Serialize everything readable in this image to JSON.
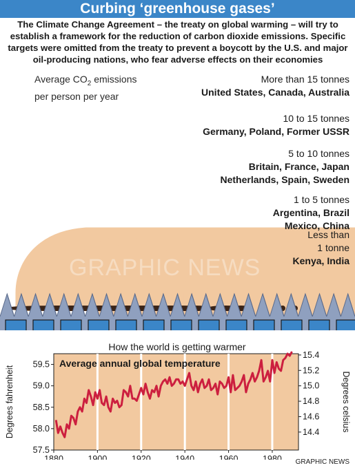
{
  "title": "Curbing ‘greenhouse gases’",
  "intro": "The Climate Change Agreement – the treaty on global warming – will try to establish a framework for the reduction of carbon dioxide emissions. Specific targets were omitted from the treaty to prevent a boycott by the U.S. and major oil-producing nations, who fear adverse effects on their economies",
  "emissions_label": {
    "line1_prefix": "Average CO",
    "line1_sub": "2",
    "line1_suffix": "emissions",
    "line2": "per person per year"
  },
  "groups": [
    {
      "title": "More than 15 tonnes",
      "countries": [
        "United States, Canada, Australia"
      ]
    },
    {
      "title": "10 to 15 tonnes",
      "countries": [
        "Germany, Poland, Former USSR"
      ]
    },
    {
      "title": "5 to 10 tonnes",
      "countries": [
        "Britain, France, Japan",
        "Netherlands, Spain, Sweden"
      ]
    },
    {
      "title": "1 to 5 tonnes",
      "countries": [
        "Argentina, Brazil",
        "Mexico, China"
      ]
    },
    {
      "title_lines": [
        "Less than",
        "1 tonne"
      ],
      "countries": [
        "Kenya, India"
      ]
    }
  ],
  "watermark": "GRAPHIC NEWS",
  "credit": "GRAPHIC NEWS",
  "colors": {
    "title_bg": "#3b86c8",
    "smoke": "#f2c9a0",
    "roof": "#8fa0bf",
    "window": "#3b86c8",
    "chart_bg": "#f2c9a0",
    "line": "#cc1f3f"
  },
  "chart_data": {
    "type": "line",
    "title": "How the world is getting warmer",
    "annotation": "Average annual global temperature",
    "ylabel_left": "Degrees fahrenheit",
    "ylabel_right": "Degrees celsius",
    "x_ticks": [
      1880,
      1900,
      1920,
      1940,
      1960,
      1980
    ],
    "y_ticks_left": [
      57.5,
      58.0,
      58.5,
      59.0,
      59.5
    ],
    "y_ticks_right": [
      14.4,
      14.6,
      14.8,
      15.0,
      15.2,
      15.4
    ],
    "ylim_left": [
      57.5,
      59.75
    ],
    "xlim": [
      1880,
      1992
    ],
    "grid": "vertical",
    "x": [
      1881,
      1882,
      1883,
      1884,
      1885,
      1886,
      1887,
      1888,
      1889,
      1890,
      1891,
      1892,
      1893,
      1894,
      1895,
      1896,
      1897,
      1898,
      1899,
      1900,
      1901,
      1902,
      1903,
      1904,
      1905,
      1906,
      1907,
      1908,
      1909,
      1910,
      1911,
      1912,
      1913,
      1914,
      1915,
      1916,
      1917,
      1918,
      1919,
      1920,
      1921,
      1922,
      1923,
      1924,
      1925,
      1926,
      1927,
      1928,
      1929,
      1930,
      1931,
      1932,
      1933,
      1934,
      1935,
      1936,
      1937,
      1938,
      1939,
      1940,
      1941,
      1942,
      1943,
      1944,
      1945,
      1946,
      1947,
      1948,
      1949,
      1950,
      1951,
      1952,
      1953,
      1954,
      1955,
      1956,
      1957,
      1958,
      1959,
      1960,
      1961,
      1962,
      1963,
      1964,
      1965,
      1966,
      1967,
      1968,
      1969,
      1970,
      1971,
      1972,
      1973,
      1974,
      1975,
      1976,
      1977,
      1978,
      1979,
      1980,
      1981,
      1982,
      1983,
      1984,
      1985,
      1986,
      1987,
      1988,
      1989
    ],
    "y": [
      58.2,
      57.9,
      58.05,
      57.9,
      57.8,
      58.1,
      58.0,
      58.3,
      58.25,
      58.1,
      58.4,
      58.5,
      58.4,
      58.7,
      58.6,
      58.9,
      58.75,
      58.55,
      58.85,
      58.7,
      58.9,
      58.6,
      58.55,
      58.75,
      58.5,
      58.4,
      58.7,
      58.6,
      58.65,
      58.5,
      58.55,
      58.9,
      58.85,
      58.75,
      59.0,
      58.7,
      58.7,
      58.65,
      58.8,
      58.95,
      58.8,
      59.05,
      58.85,
      58.7,
      58.9,
      58.85,
      59.0,
      58.75,
      59.0,
      59.1,
      59.15,
      59.05,
      59.2,
      59.0,
      59.05,
      59.15,
      59.15,
      59.05,
      59.1,
      59.0,
      59.15,
      59.3,
      59.0,
      58.9,
      59.1,
      58.85,
      59.05,
      59.15,
      58.95,
      59.0,
      59.15,
      58.9,
      58.95,
      59.05,
      58.8,
      59.1,
      59.05,
      58.95,
      59.0,
      59.2,
      58.85,
      59.25,
      58.9,
      58.95,
      59.0,
      59.1,
      59.25,
      58.85,
      59.05,
      59.15,
      59.3,
      59.1,
      59.2,
      59.35,
      59.6,
      59.1,
      59.2,
      59.35,
      59.1,
      59.6,
      59.3,
      59.55,
      59.4,
      59.35,
      59.6,
      59.65,
      59.75,
      59.7,
      59.8
    ]
  }
}
